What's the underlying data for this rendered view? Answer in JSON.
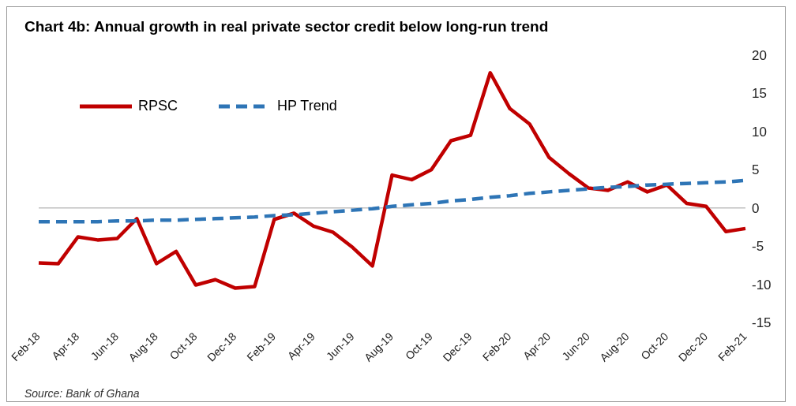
{
  "chart_data": {
    "type": "line",
    "title": "Chart 4b: Annual growth in real private sector credit below long-run trend",
    "categories": [
      "Feb-18",
      null,
      "Apr-18",
      null,
      "Jun-18",
      null,
      "Aug-18",
      null,
      "Oct-18",
      null,
      "Dec-18",
      null,
      "Feb-19",
      null,
      "Apr-19",
      null,
      "Jun-19",
      null,
      "Aug-19",
      null,
      "Oct-19",
      null,
      "Dec-19",
      null,
      "Feb-20",
      null,
      "Apr-20",
      null,
      "Jun-20",
      null,
      "Aug-20",
      null,
      "Oct-20",
      null,
      "Dec-20",
      null,
      "Feb-21"
    ],
    "series": [
      {
        "name": "RPSC",
        "color": "#c00000",
        "line_style": "solid",
        "values": [
          -7.2,
          -7.3,
          -3.8,
          -4.2,
          -4.0,
          -1.4,
          -7.3,
          -5.7,
          -10.1,
          -9.4,
          -10.5,
          -10.3,
          -1.5,
          -0.7,
          -2.4,
          -3.2,
          -5.2,
          -7.6,
          4.3,
          3.7,
          5.0,
          8.8,
          9.5,
          17.7,
          13.0,
          11.0,
          6.6,
          4.5,
          2.6,
          2.3,
          3.4,
          2.1,
          3.0,
          0.6,
          0.2,
          -3.1,
          -2.7
        ]
      },
      {
        "name": "HP Trend",
        "color": "#2e75b6",
        "line_style": "dashed",
        "values": [
          -1.8,
          -1.8,
          -1.8,
          -1.8,
          -1.7,
          -1.7,
          -1.6,
          -1.6,
          -1.5,
          -1.4,
          -1.3,
          -1.2,
          -1.0,
          -0.9,
          -0.7,
          -0.5,
          -0.3,
          -0.1,
          0.2,
          0.4,
          0.6,
          0.9,
          1.1,
          1.4,
          1.6,
          1.9,
          2.1,
          2.3,
          2.5,
          2.7,
          2.8,
          3.0,
          3.1,
          3.2,
          3.3,
          3.4,
          3.6
        ]
      }
    ],
    "ylim": [
      -15,
      20
    ],
    "yticks": [
      20,
      15,
      10,
      5,
      0,
      -5,
      -10,
      -15
    ],
    "ref_lines": [
      {
        "axis": "y",
        "value": 0,
        "color": "#bfbfbf"
      }
    ],
    "grid": false,
    "legend": "top left",
    "marker": "none",
    "annotations": [
      "Source: Bank of Ghana"
    ]
  }
}
